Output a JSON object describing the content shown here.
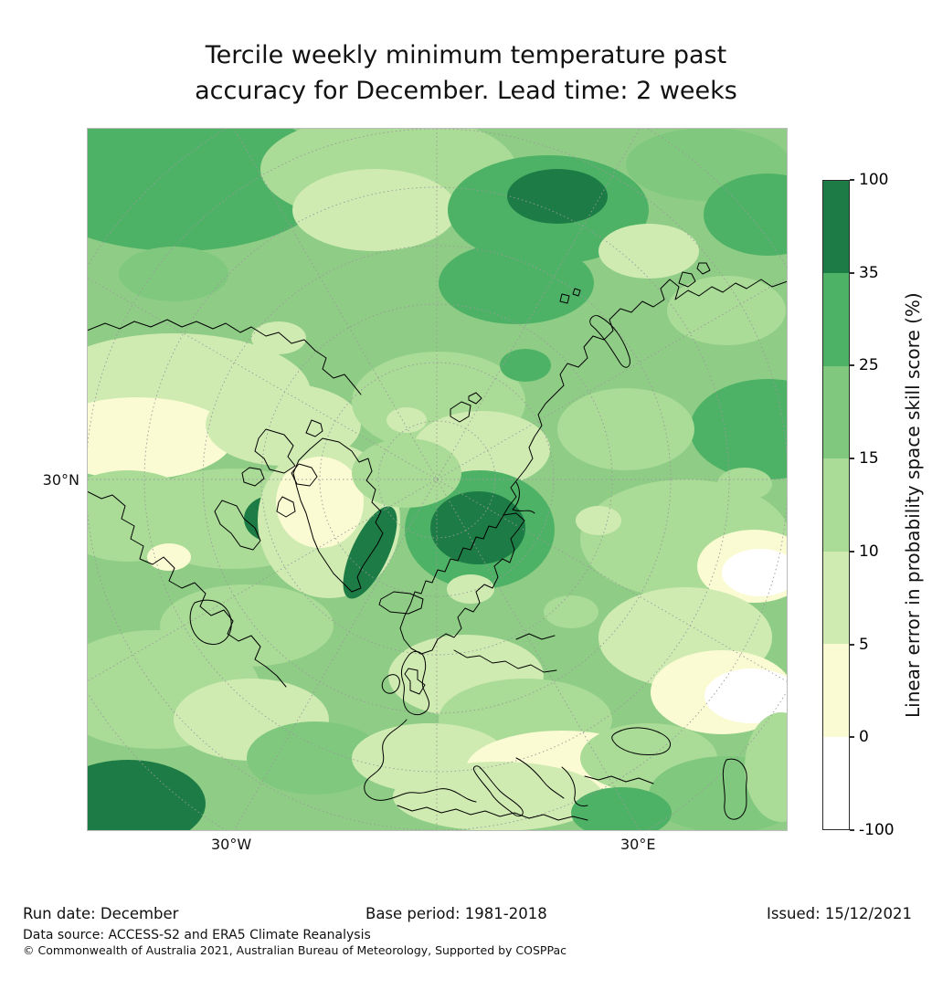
{
  "title": {
    "line1": "Tercile weekly minimum temperature past",
    "line2": "accuracy for December. Lead time: 2 weeks"
  },
  "map": {
    "lat_label": "30°N",
    "lon_label_west": "30°W",
    "lon_label_east": "30°E"
  },
  "colorbar": {
    "label": "Linear error in probability space skill score (%)",
    "tick_labels": [
      "100",
      "35",
      "25",
      "15",
      "10",
      "5",
      "0",
      "-100"
    ],
    "segments": [
      {
        "range": "35 to 100",
        "color": "#1d7c45"
      },
      {
        "range": "25 to 35",
        "color": "#4eb266"
      },
      {
        "range": "15 to 25",
        "color": "#80c87e"
      },
      {
        "range": "10 to 15",
        "color": "#aadb97"
      },
      {
        "range": "5 to 10",
        "color": "#d0ebb2"
      },
      {
        "range": "0 to 5",
        "color": "#fafbd2"
      },
      {
        "range": "-100 to 0",
        "color": "#ffffff"
      }
    ]
  },
  "footer": {
    "run_date": "Run date: December",
    "base_period": "Base period: 1981-2018",
    "issued": "Issued: 15/12/2021",
    "data_source": "Data source: ACCESS-S2 and ERA5 Climate Reanalysis",
    "copyright": "© Commonwealth of Australia 2021, Australian Bureau of Meteorology, Supported by COSPPac"
  },
  "chart_data": {
    "type": "heatmap",
    "title": "Tercile weekly minimum temperature past accuracy for December. Lead time: 2 weeks",
    "colorbar_label": "Linear error in probability space skill score (%)",
    "colorbar_levels": [
      -100,
      0,
      5,
      10,
      15,
      25,
      35,
      100
    ],
    "colorbar_colors": [
      "#ffffff",
      "#fafbd2",
      "#d0ebb2",
      "#aadb97",
      "#80c87e",
      "#4eb266",
      "#1d7c45"
    ],
    "graticule_labels": [
      "30°N",
      "30°W",
      "30°E"
    ],
    "legend_position": "right",
    "run_date": "December",
    "base_period": "1981-2018",
    "issued": "15/12/2021",
    "data_source": "ACCESS-S2 and ERA5 Climate Reanalysis"
  }
}
